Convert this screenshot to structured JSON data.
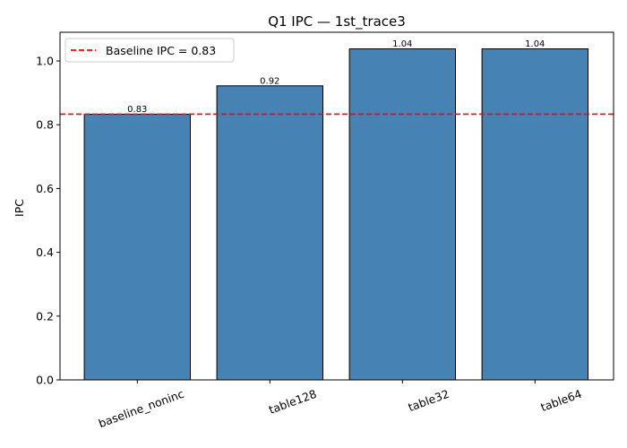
{
  "chart_data": {
    "type": "bar",
    "title": "Q1 IPC — 1st_trace3",
    "xlabel": "",
    "ylabel": "IPC",
    "categories": [
      "baseline_noninc",
      "table128",
      "table32",
      "table64"
    ],
    "values": [
      0.833,
      0.922,
      1.038,
      1.038
    ],
    "value_labels": [
      "0.83",
      "0.92",
      "1.04",
      "1.04"
    ],
    "ylim": [
      0,
      1.09
    ],
    "yticks": [
      0.0,
      0.2,
      0.4,
      0.6,
      0.8,
      1.0
    ],
    "ytick_labels": [
      "0.0",
      "0.2",
      "0.4",
      "0.6",
      "0.8",
      "1.0"
    ],
    "bar_color": "#4682b4",
    "bar_edge_color": "#000000",
    "reference_line": {
      "value": 0.833,
      "label": "Baseline IPC = 0.83",
      "color": "#ff0000",
      "style": "dashed"
    },
    "legend_placement": "upper-left",
    "grid": false
  }
}
